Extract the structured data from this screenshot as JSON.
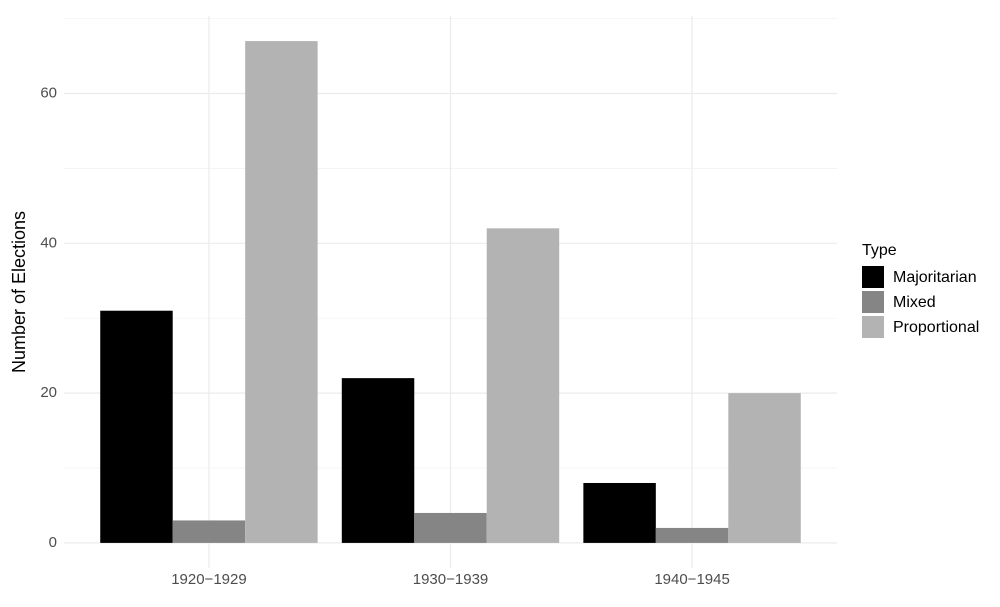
{
  "chart_data": {
    "type": "bar",
    "y_label": "Number of Elections",
    "categories": [
      "1920−1929",
      "1930−1939",
      "1940−1945"
    ],
    "series": [
      {
        "name": "Majoritarian",
        "color": "#000000",
        "values": [
          31,
          22,
          8
        ]
      },
      {
        "name": "Mixed",
        "color": "#858585",
        "values": [
          3,
          4,
          2
        ]
      },
      {
        "name": "Proportional",
        "color": "#b3b3b3",
        "values": [
          67,
          42,
          20
        ]
      }
    ],
    "legend_title": "Type",
    "legend_position": "right",
    "ylim": [
      -3.35,
      70.35
    ],
    "yticks": [
      0,
      20,
      40,
      60
    ],
    "minor_yticks": [
      10,
      30,
      50,
      70
    ],
    "grid": true
  }
}
